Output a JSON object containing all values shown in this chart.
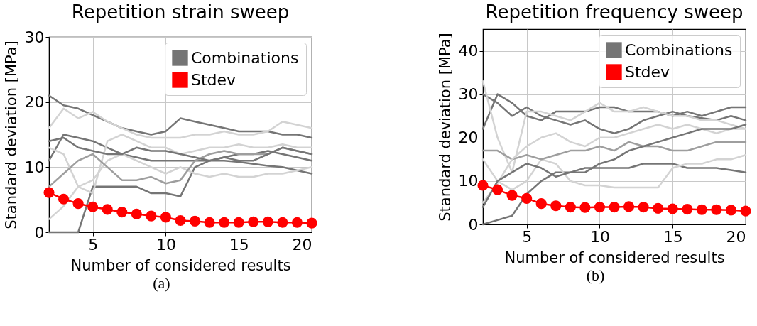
{
  "chart_data": [
    {
      "type": "line",
      "title": "Repetition strain sweep",
      "xlabel": "Number of considered results",
      "ylabel": "Standard deviation [MPa]",
      "annotations": [
        "(a)"
      ],
      "x": [
        2,
        3,
        4,
        5,
        6,
        7,
        8,
        9,
        10,
        11,
        12,
        13,
        14,
        15,
        16,
        17,
        18,
        19,
        20
      ],
      "xlim": [
        2,
        20
      ],
      "xticks": [
        5,
        10,
        15,
        20
      ],
      "ylim": [
        0,
        30
      ],
      "yticks": [
        0,
        10,
        20,
        30
      ],
      "grid": true,
      "legend": "top right",
      "series": [
        {
          "name": "Combinations",
          "color": "#757575",
          "values": [
            21,
            19.5,
            19,
            18,
            17,
            16,
            15.5,
            15,
            15.5,
            17.5,
            17,
            16.5,
            16,
            15.5,
            15.5,
            15.5,
            15,
            15,
            14.5
          ]
        },
        {
          "color": "#757575",
          "values": [
            11,
            15,
            14.5,
            14,
            13,
            12,
            11.5,
            11,
            11,
            11,
            11,
            11,
            11,
            10.8,
            10.5,
            10.2,
            10,
            9.5,
            9
          ]
        },
        {
          "color": "#757575",
          "values": [
            0,
            0,
            0,
            7,
            7,
            7,
            7,
            6,
            6,
            5.5,
            10,
            11,
            11.5,
            12,
            12,
            12.5,
            12,
            11.5,
            11
          ]
        },
        {
          "color": "#d3d3d3",
          "values": [
            16,
            19,
            17.5,
            18.5,
            17,
            16,
            15,
            14.5,
            14.5,
            14.5,
            15,
            15,
            15.5,
            15,
            15,
            15.5,
            17,
            16.5,
            16
          ]
        },
        {
          "color": "#d3d3d3",
          "values": [
            13,
            12,
            7,
            6,
            14,
            15,
            14,
            13,
            13,
            12,
            12.5,
            13,
            13,
            13.5,
            13,
            13,
            13.5,
            13,
            13
          ]
        },
        {
          "color": "#d3d3d3",
          "values": [
            2,
            4,
            7,
            8,
            11,
            12,
            11,
            10,
            9,
            10,
            9,
            8.5,
            9,
            8.5,
            8.5,
            9,
            9,
            9.5,
            10
          ]
        },
        {
          "color": "#9e9e9e",
          "values": [
            7,
            9,
            11,
            12,
            10,
            8,
            8,
            8.5,
            7.5,
            8,
            11,
            12,
            12.5,
            12,
            12,
            12,
            13,
            12.5,
            12
          ]
        },
        {
          "color": "#757575",
          "values": [
            14,
            14.5,
            13,
            12.5,
            12,
            12,
            13,
            12.5,
            12.5,
            12,
            11.5,
            11,
            11.5,
            11,
            11,
            12,
            13,
            12.5,
            12
          ]
        },
        {
          "name": "Stdev",
          "color": "#ff0000",
          "marker": "circle",
          "values": [
            6.1,
            5.1,
            4.4,
            3.9,
            3.5,
            3.1,
            2.8,
            2.5,
            2.3,
            1.8,
            1.7,
            1.5,
            1.5,
            1.5,
            1.6,
            1.6,
            1.5,
            1.5,
            1.4
          ]
        }
      ]
    },
    {
      "type": "line",
      "title": "Repetition frequency sweep",
      "xlabel": "Number of considered results",
      "ylabel": "Standard deviation [MPa]",
      "annotations": [
        "(b)"
      ],
      "x": [
        2,
        3,
        4,
        5,
        6,
        7,
        8,
        9,
        10,
        11,
        12,
        13,
        14,
        15,
        16,
        17,
        18,
        19,
        20
      ],
      "xlim": [
        2,
        20
      ],
      "xticks": [
        5,
        10,
        15,
        20
      ],
      "ylim": [
        0,
        45
      ],
      "yticks": [
        0,
        10,
        20,
        30,
        40
      ],
      "grid": true,
      "legend": "top right",
      "series": [
        {
          "name": "Combinations",
          "color": "#757575",
          "values": [
            30,
            28,
            25,
            27,
            25,
            24,
            23,
            24,
            22,
            21,
            22,
            24,
            25,
            26,
            25,
            24.5,
            24,
            25,
            24
          ]
        },
        {
          "color": "#757575",
          "values": [
            22,
            30,
            28,
            25,
            24,
            26,
            26,
            26,
            27,
            27,
            26,
            26,
            26,
            25,
            26,
            25,
            26,
            27,
            27
          ]
        },
        {
          "color": "#757575",
          "values": [
            0,
            1,
            2,
            7,
            10,
            12,
            12,
            13,
            13,
            13,
            13,
            14,
            14,
            14,
            13,
            13,
            13,
            12.5,
            12
          ]
        },
        {
          "color": "#d3d3d3",
          "values": [
            33,
            20,
            12,
            26,
            26,
            25,
            24,
            26,
            28,
            26,
            26,
            27,
            26,
            25,
            25,
            24,
            24,
            23,
            22
          ]
        },
        {
          "color": "#d3d3d3",
          "values": [
            15,
            10,
            8,
            10,
            15,
            14,
            10,
            9,
            9,
            8.5,
            8.5,
            8.5,
            8.5,
            13,
            14,
            14,
            15,
            15,
            16
          ]
        },
        {
          "color": "#9e9e9e",
          "values": [
            17,
            17,
            15,
            16,
            15,
            16,
            17,
            17,
            18,
            17,
            19,
            18,
            18,
            17,
            17,
            18,
            19,
            19,
            19
          ]
        },
        {
          "color": "#d3d3d3",
          "values": [
            5,
            9.5,
            15,
            18,
            20,
            21,
            19,
            18,
            20,
            20,
            21,
            22,
            23,
            22,
            23,
            22,
            21,
            22,
            22
          ]
        },
        {
          "color": "#757575",
          "values": [
            4,
            10,
            12,
            14,
            13,
            11,
            12,
            12,
            14,
            15,
            17,
            18,
            19,
            20,
            21,
            22,
            22,
            22,
            23
          ]
        },
        {
          "name": "Stdev",
          "color": "#ff0000",
          "marker": "circle",
          "values": [
            9.0,
            8.0,
            6.7,
            6.0,
            4.8,
            4.3,
            4.0,
            3.9,
            4.0,
            4.0,
            4.1,
            4.0,
            3.7,
            3.6,
            3.5,
            3.4,
            3.4,
            3.3,
            3.1
          ]
        }
      ]
    }
  ]
}
